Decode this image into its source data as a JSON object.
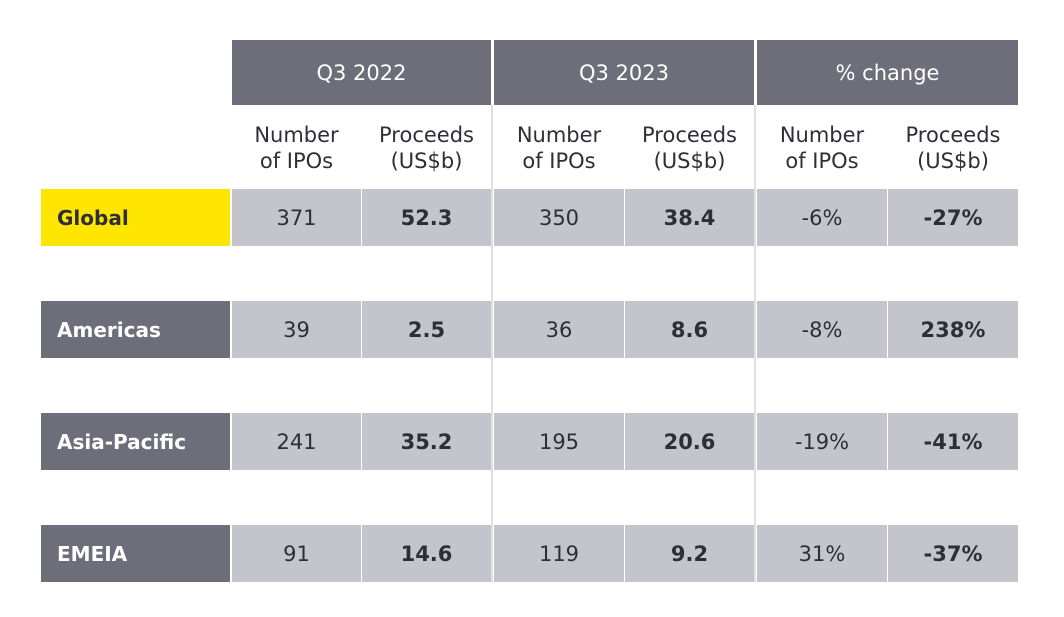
{
  "header": {
    "groups": [
      "Q3 2022",
      "Q3 2023",
      "% change"
    ],
    "subheaders": [
      [
        "Number",
        "of IPOs"
      ],
      [
        "Proceeds",
        "(US$b)"
      ],
      [
        "Number",
        "of IPOs"
      ],
      [
        "Proceeds",
        "(US$b)"
      ],
      [
        "Number",
        "of IPOs"
      ],
      [
        "Proceeds",
        "(US$b)"
      ]
    ]
  },
  "table": {
    "rows": [
      {
        "label": "Global",
        "cells": [
          "371",
          "52.3",
          "350",
          "38.4",
          "-6%",
          "-27%"
        ]
      },
      {
        "label": "Americas",
        "cells": [
          "39",
          "2.5",
          "36",
          "8.6",
          "-8%",
          "238%"
        ]
      },
      {
        "label": "Asia-Pacific",
        "cells": [
          "241",
          "35.2",
          "195",
          "20.6",
          "-19%",
          "-41%"
        ]
      },
      {
        "label": "EMEIA",
        "cells": [
          "91",
          "14.6",
          "119",
          "9.2",
          "31%",
          "-37%"
        ]
      }
    ]
  }
}
